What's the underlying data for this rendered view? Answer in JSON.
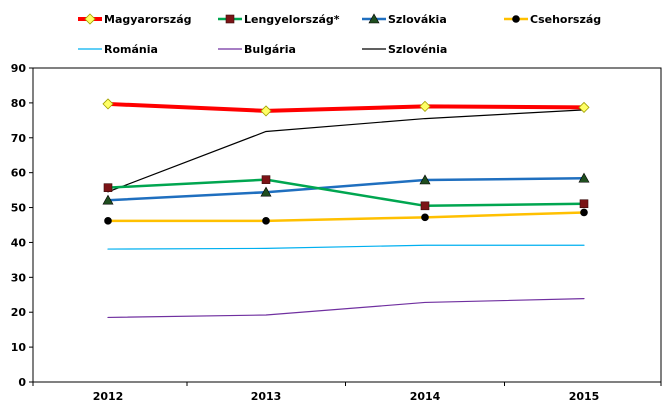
{
  "chart_data": {
    "type": "line",
    "title": "",
    "xlabel": "",
    "ylabel": "",
    "ylim": [
      0,
      90
    ],
    "yticks": [
      0,
      10,
      20,
      30,
      40,
      50,
      60,
      70,
      80,
      90
    ],
    "x": [
      "2012",
      "2013",
      "2014",
      "2015"
    ],
    "grid": false,
    "legend_position": "top",
    "series": [
      {
        "name": "Magyarország",
        "values": [
          79.7,
          77.7,
          79.0,
          78.7
        ],
        "color": "#ff0000",
        "marker": "diamond",
        "marker_fill": "#ffff66"
      },
      {
        "name": "Lengyelország*",
        "values": [
          55.7,
          58.0,
          50.5,
          51.1
        ],
        "color": "#00a650",
        "marker": "square",
        "marker_fill": "#7b1416"
      },
      {
        "name": "Szlovákia",
        "values": [
          52.1,
          54.4,
          57.9,
          58.4
        ],
        "color": "#1f6fbf",
        "marker": "triangle",
        "marker_fill": "#1f4e1f"
      },
      {
        "name": "Csehország",
        "values": [
          46.2,
          46.2,
          47.2,
          48.6
        ],
        "color": "#ffc000",
        "marker": "circle",
        "marker_fill": "#000000"
      },
      {
        "name": "Románia",
        "values": [
          38.1,
          38.3,
          39.2,
          39.2
        ],
        "color": "#00b0f0",
        "marker": "none"
      },
      {
        "name": "Bulgária",
        "values": [
          18.5,
          19.2,
          22.8,
          23.9
        ],
        "color": "#7030a0",
        "marker": "none"
      },
      {
        "name": "Szlovénia",
        "values": [
          54.5,
          71.8,
          75.5,
          78.0
        ],
        "color": "#000000",
        "marker": "none"
      }
    ]
  }
}
